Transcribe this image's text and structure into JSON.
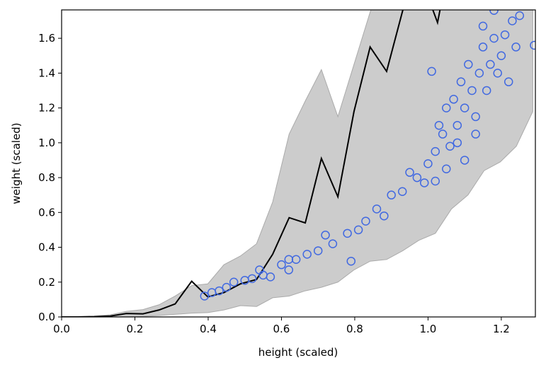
{
  "chart_data": {
    "type": "layered",
    "xlabel": "height (scaled)",
    "ylabel": "weight (scaled)",
    "xlim": [
      0,
      1.293
    ],
    "ylim": [
      0,
      1.763
    ],
    "xticks": [
      {
        "value": 0,
        "label": "0.0"
      },
      {
        "value": 0.2,
        "label": "0.2"
      },
      {
        "value": 0.4,
        "label": "0.4"
      },
      {
        "value": 0.6,
        "label": "0.6"
      },
      {
        "value": 0.8,
        "label": "0.8"
      },
      {
        "value": 1.0,
        "label": "1.0"
      },
      {
        "value": 1.2,
        "label": "1.2"
      }
    ],
    "yticks": [
      {
        "value": 0,
        "label": "0.0"
      },
      {
        "value": 0.2,
        "label": "0.2"
      },
      {
        "value": 0.4,
        "label": "0.4"
      },
      {
        "value": 0.6,
        "label": "0.6"
      },
      {
        "value": 0.8,
        "label": "0.8"
      },
      {
        "value": 1.0,
        "label": "1.0"
      },
      {
        "value": 1.2,
        "label": "1.2"
      },
      {
        "value": 1.4,
        "label": "1.4"
      },
      {
        "value": 1.6,
        "label": "1.6"
      }
    ],
    "layers": [
      {
        "type": "area",
        "color": "#cccccc",
        "x": [
          0,
          0.044,
          0.089,
          0.133,
          0.177,
          0.222,
          0.266,
          0.31,
          0.355,
          0.399,
          0.443,
          0.488,
          0.532,
          0.576,
          0.621,
          0.665,
          0.709,
          0.754,
          0.798,
          0.842,
          0.887,
          0.931,
          0.975,
          1.02,
          1.064,
          1.109,
          1.153,
          1.197,
          1.241,
          1.286
        ],
        "upper": [
          0,
          0.002,
          0.006,
          0.012,
          0.032,
          0.042,
          0.07,
          0.12,
          0.18,
          0.19,
          0.3,
          0.35,
          0.42,
          0.66,
          1.05,
          1.24,
          1.42,
          1.15,
          1.45,
          1.75,
          2.0,
          2.3,
          2.5,
          2.7,
          2.9,
          3.1,
          3.3,
          3.5,
          3.7,
          3.9
        ],
        "lower": [
          0,
          0,
          0,
          0,
          0.001,
          0.003,
          0.008,
          0.015,
          0.022,
          0.025,
          0.04,
          0.065,
          0.06,
          0.11,
          0.12,
          0.15,
          0.17,
          0.2,
          0.27,
          0.32,
          0.33,
          0.38,
          0.44,
          0.48,
          0.62,
          0.7,
          0.84,
          0.89,
          0.98,
          1.18
        ]
      },
      {
        "type": "line",
        "color": "#000000",
        "x": [
          0,
          0.044,
          0.089,
          0.133,
          0.177,
          0.222,
          0.266,
          0.31,
          0.355,
          0.399,
          0.443,
          0.488,
          0.532,
          0.576,
          0.621,
          0.665,
          0.709,
          0.754,
          0.798,
          0.842,
          0.887,
          0.931,
          0.975,
          1.026,
          1.064,
          1.109,
          1.153,
          1.197,
          1.241,
          1.286
        ],
        "values": [
          0,
          0,
          0.001,
          0.005,
          0.02,
          0.018,
          0.04,
          0.075,
          0.205,
          0.115,
          0.14,
          0.19,
          0.215,
          0.36,
          0.57,
          0.54,
          0.91,
          0.69,
          1.18,
          1.55,
          1.41,
          1.76,
          1.98,
          1.69,
          2.1,
          2.3,
          2.4,
          2.6,
          2.8,
          3.0
        ]
      },
      {
        "type": "scatter",
        "color": "#4169e1",
        "x": [
          0.39,
          0.41,
          0.45,
          0.47,
          0.5,
          0.52,
          0.54,
          0.57,
          0.6,
          0.62,
          0.64,
          0.67,
          0.7,
          0.72,
          0.74,
          0.78,
          0.79,
          0.81,
          0.83,
          0.86,
          0.88,
          0.9,
          0.93,
          0.95,
          0.97,
          0.99,
          1.0,
          1.01,
          1.02,
          1.03,
          1.04,
          1.05,
          1.06,
          1.07,
          1.08,
          1.09,
          1.1,
          1.11,
          1.12,
          1.13,
          1.14,
          1.15,
          1.16,
          1.17,
          1.18,
          1.19,
          1.2,
          1.21,
          1.22,
          1.23,
          1.24,
          1.25,
          1.29,
          1.18,
          1.15,
          0.62,
          0.55,
          0.43,
          1.08,
          1.1,
          1.13,
          1.05,
          1.02
        ],
        "values": [
          0.12,
          0.14,
          0.17,
          0.2,
          0.21,
          0.22,
          0.27,
          0.23,
          0.3,
          0.27,
          0.33,
          0.36,
          0.38,
          0.47,
          0.42,
          0.48,
          0.32,
          0.5,
          0.55,
          0.62,
          0.58,
          0.7,
          0.72,
          0.83,
          0.8,
          0.77,
          0.88,
          1.41,
          0.95,
          1.1,
          1.05,
          1.2,
          0.98,
          1.25,
          1.1,
          1.35,
          1.2,
          1.45,
          1.3,
          1.15,
          1.4,
          1.55,
          1.3,
          1.45,
          1.6,
          1.4,
          1.5,
          1.62,
          1.35,
          1.7,
          1.55,
          1.73,
          1.56,
          1.76,
          1.67,
          0.33,
          0.24,
          0.15,
          1.0,
          0.9,
          1.05,
          0.85,
          0.78
        ]
      }
    ]
  }
}
